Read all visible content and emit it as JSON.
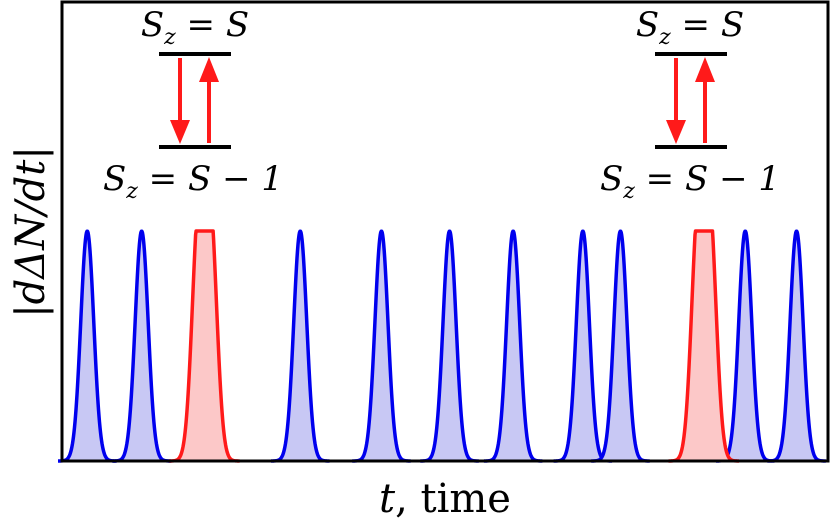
{
  "chart_data": {
    "type": "area",
    "title": "",
    "xlabel": {
      "var": "t",
      "rest": ", time"
    },
    "ylabel": "|dΔN/dt|",
    "xlim": [
      0,
      100
    ],
    "ylim": [
      0,
      1
    ],
    "grid": false,
    "legend": "none",
    "colors": {
      "blue_line": "#0000ee",
      "blue_fill": "#c8c8f4",
      "red_line": "#ff1a1a",
      "red_fill": "#fcc8c8",
      "frame": "#000000"
    },
    "series": [
      {
        "color_key": "blue",
        "peaks": [
          {
            "t": 3.3,
            "height": 1.0
          },
          {
            "t": 10.4,
            "height": 1.0
          },
          {
            "t": 31.1,
            "height": 1.0
          },
          {
            "t": 41.7,
            "height": 1.0
          },
          {
            "t": 50.6,
            "height": 1.0
          },
          {
            "t": 58.9,
            "height": 1.0
          },
          {
            "t": 68.0,
            "height": 1.0
          },
          {
            "t": 72.9,
            "height": 1.0
          },
          {
            "t": 89.2,
            "height": 1.0
          },
          {
            "t": 95.9,
            "height": 1.0
          }
        ]
      },
      {
        "color_key": "red",
        "peaks": [
          {
            "t": 17.8,
            "height": 1.0
          },
          {
            "t": 19.4,
            "height": 1.0
          },
          {
            "t": 83.0,
            "height": 1.0
          },
          {
            "t": 84.6,
            "height": 1.0
          }
        ]
      }
    ],
    "annotations": [
      {
        "upper_level": "S_z = S",
        "lower_level": "S_z = S − 1",
        "upper_tex": {
          "base": "S",
          "sub": "z",
          "rest": " = S"
        },
        "lower_tex": {
          "base": "S",
          "sub": "z",
          "rest": " = S − 1"
        }
      },
      {
        "upper_level": "S_z = S",
        "lower_level": "S_z = S − 1",
        "upper_tex": {
          "base": "S",
          "sub": "z",
          "rest": " = S"
        },
        "lower_tex": {
          "base": "S",
          "sub": "z",
          "rest": " = S − 1"
        }
      }
    ]
  }
}
